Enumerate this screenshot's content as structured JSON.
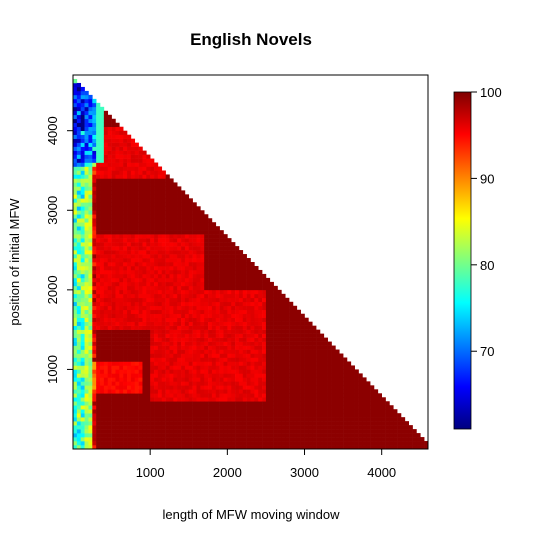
{
  "chart_data": {
    "type": "heatmap",
    "title": "English Novels",
    "xlabel": "length of MFW moving window",
    "ylabel": "position of initial MFW",
    "xlim": [
      0,
      4600
    ],
    "ylim": [
      0,
      4700
    ],
    "x_ticks": [
      "1000",
      "2000",
      "3000",
      "4000"
    ],
    "y_ticks": [
      "1000",
      "2000",
      "3000",
      "4000"
    ],
    "colorbar": {
      "range": [
        61,
        100
      ],
      "ticks": [
        "70",
        "80",
        "90",
        "100"
      ],
      "colors": [
        "#00007f",
        "#0000ff",
        "#007fff",
        "#00ffff",
        "#7fff7f",
        "#ffff00",
        "#ff7f00",
        "#ff0000",
        "#7f0000"
      ]
    },
    "grid_step": 50,
    "constraint": "window length + initial position <= 4600 (upper-right triangle empty)",
    "dominant_value": 99.5,
    "regions": [
      {
        "desc": "central plateau",
        "value": 96,
        "x": [
          300,
          1700
        ],
        "y": [
          1500,
          2700
        ]
      },
      {
        "desc": "upper band",
        "value": 96,
        "x": [
          100,
          1200
        ],
        "y": [
          3400,
          4050
        ]
      },
      {
        "desc": "diagonal ridge",
        "value": 96,
        "x": [
          1000,
          2500
        ],
        "y": [
          600,
          2000
        ]
      },
      {
        "desc": "lower-left patch",
        "value": 95,
        "x": [
          100,
          900
        ],
        "y": [
          700,
          1100
        ]
      },
      {
        "desc": "short-window edge",
        "value": 85,
        "x": [
          0,
          250
        ],
        "y": [
          0,
          4700
        ]
      },
      {
        "desc": "top-left corner",
        "value": 78,
        "x": [
          0,
          400
        ],
        "y": [
          3600,
          4600
        ]
      }
    ]
  }
}
